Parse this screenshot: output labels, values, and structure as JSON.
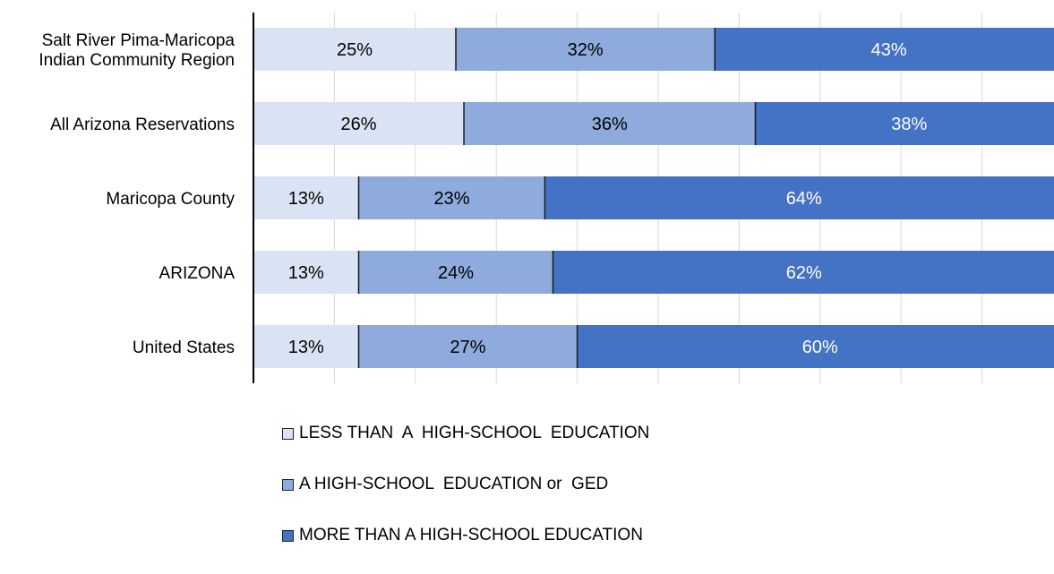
{
  "chart_data": {
    "type": "bar",
    "orientation": "horizontal",
    "stacked": true,
    "categories": [
      [
        "Salt River Pima-Maricopa",
        "Indian Community Region"
      ],
      [
        "All Arizona Reservations"
      ],
      [
        "Maricopa County"
      ],
      [
        "ARIZONA"
      ],
      [
        "United States"
      ]
    ],
    "series": [
      {
        "name": "LESS THAN  A  HIGH-SCHOOL  EDUCATION",
        "color": "#dae3f3",
        "label_color": "#000000",
        "values": [
          25,
          26,
          13,
          13,
          13
        ],
        "labels": [
          "25%",
          "26%",
          "13%",
          "13%",
          "13%"
        ]
      },
      {
        "name": "A HIGH-SCHOOL  EDUCATION or  GED",
        "color": "#8faadc",
        "label_color": "#000000",
        "values": [
          32,
          36,
          23,
          24,
          27
        ],
        "labels": [
          "32%",
          "36%",
          "23%",
          "24%",
          "27%"
        ]
      },
      {
        "name": "MORE THAN A HIGH-SCHOOL EDUCATION",
        "color": "#4472c4",
        "label_color": "#ffffff",
        "values": [
          43,
          38,
          64,
          62,
          60
        ],
        "labels": [
          "43%",
          "38%",
          "64%",
          "62%",
          "60%"
        ]
      }
    ],
    "xlim": [
      0,
      100
    ],
    "grid": true,
    "legend_position": "bottom"
  }
}
